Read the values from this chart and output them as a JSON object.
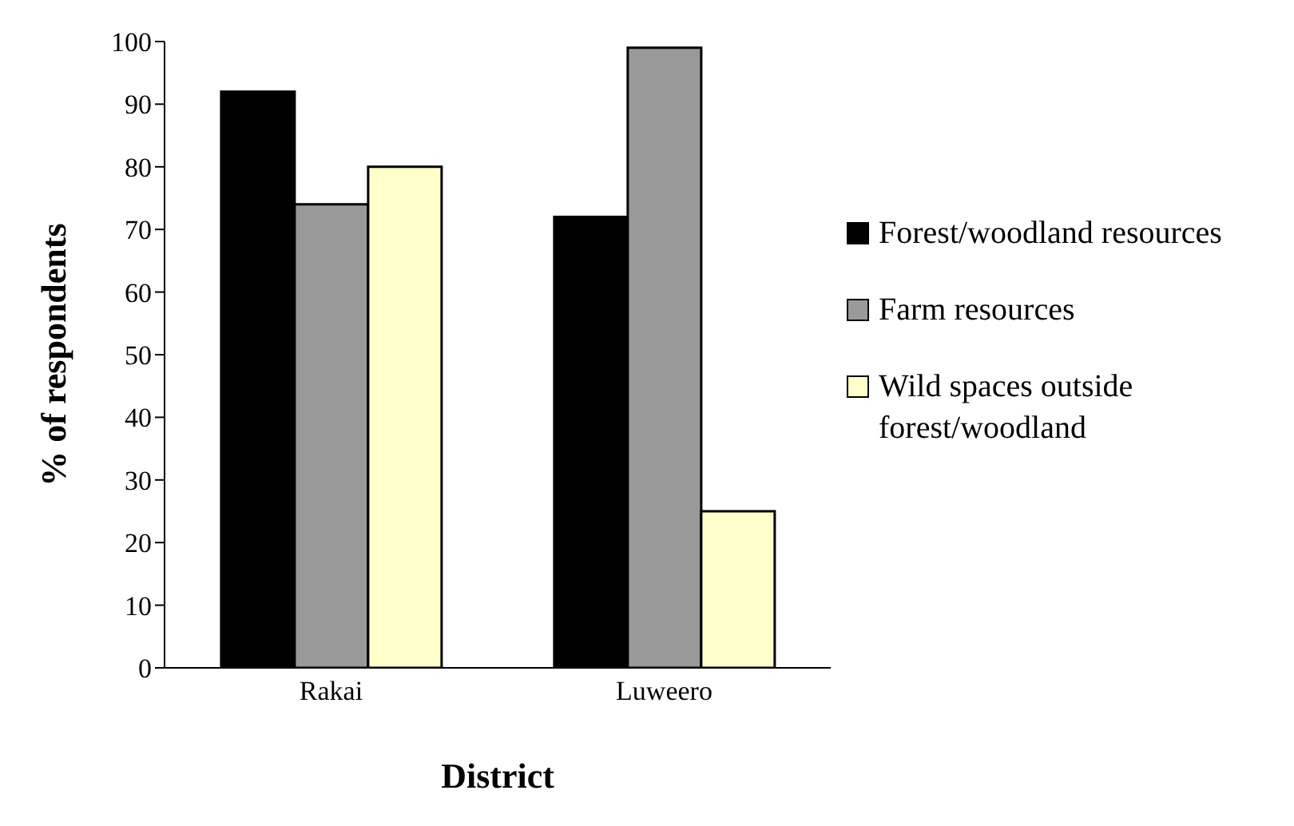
{
  "chart_data": {
    "type": "bar",
    "xlabel": "District",
    "ylabel": "% of respondents",
    "categories": [
      "Rakai",
      "Luweero"
    ],
    "series": [
      {
        "name": "Forest/woodland resources",
        "color": "#000000",
        "values": [
          92,
          72
        ]
      },
      {
        "name": "Farm resources",
        "color": "#999999",
        "values": [
          74,
          99
        ]
      },
      {
        "name": "Wild spaces outside forest/woodland",
        "color": "#ffffcc",
        "values": [
          80,
          25
        ]
      }
    ],
    "ylim": [
      0,
      100
    ],
    "yticks": [
      0,
      10,
      20,
      30,
      40,
      50,
      60,
      70,
      80,
      90,
      100
    ],
    "grid": false,
    "legend": "right"
  }
}
